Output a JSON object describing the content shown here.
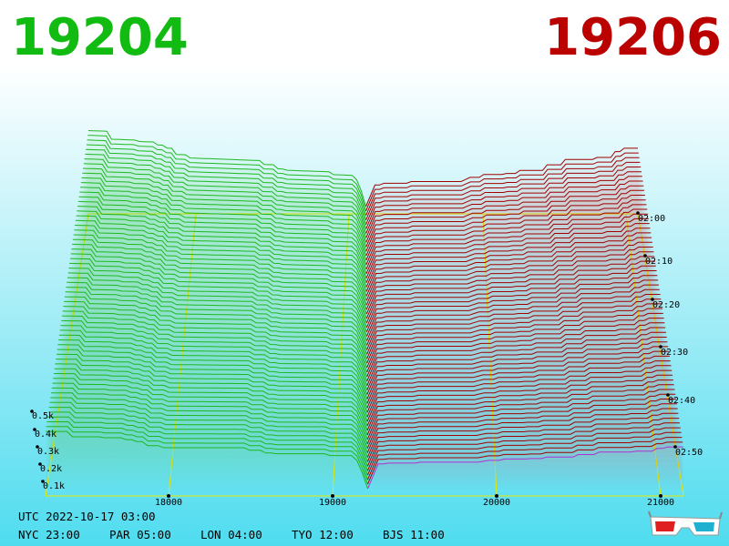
{
  "header": {
    "bid": "19204",
    "ask": "19206"
  },
  "price_axis": {
    "ticks": [
      "18000",
      "19000",
      "20000",
      "21000"
    ]
  },
  "depth_axis": {
    "ticks": [
      "0.5k",
      "0.4k",
      "0.3k",
      "0.2k",
      "0.1k"
    ]
  },
  "time_axis": {
    "ticks": [
      "02:00",
      "02:10",
      "02:20",
      "02:30",
      "02:40",
      "02:50"
    ]
  },
  "footer": {
    "utc": "UTC 2022-10-17 03:00",
    "clocks": [
      "NYC 23:00",
      "PAR 05:00",
      "LON 04:00",
      "TYO 12:00",
      "BJS 11:00"
    ]
  }
}
